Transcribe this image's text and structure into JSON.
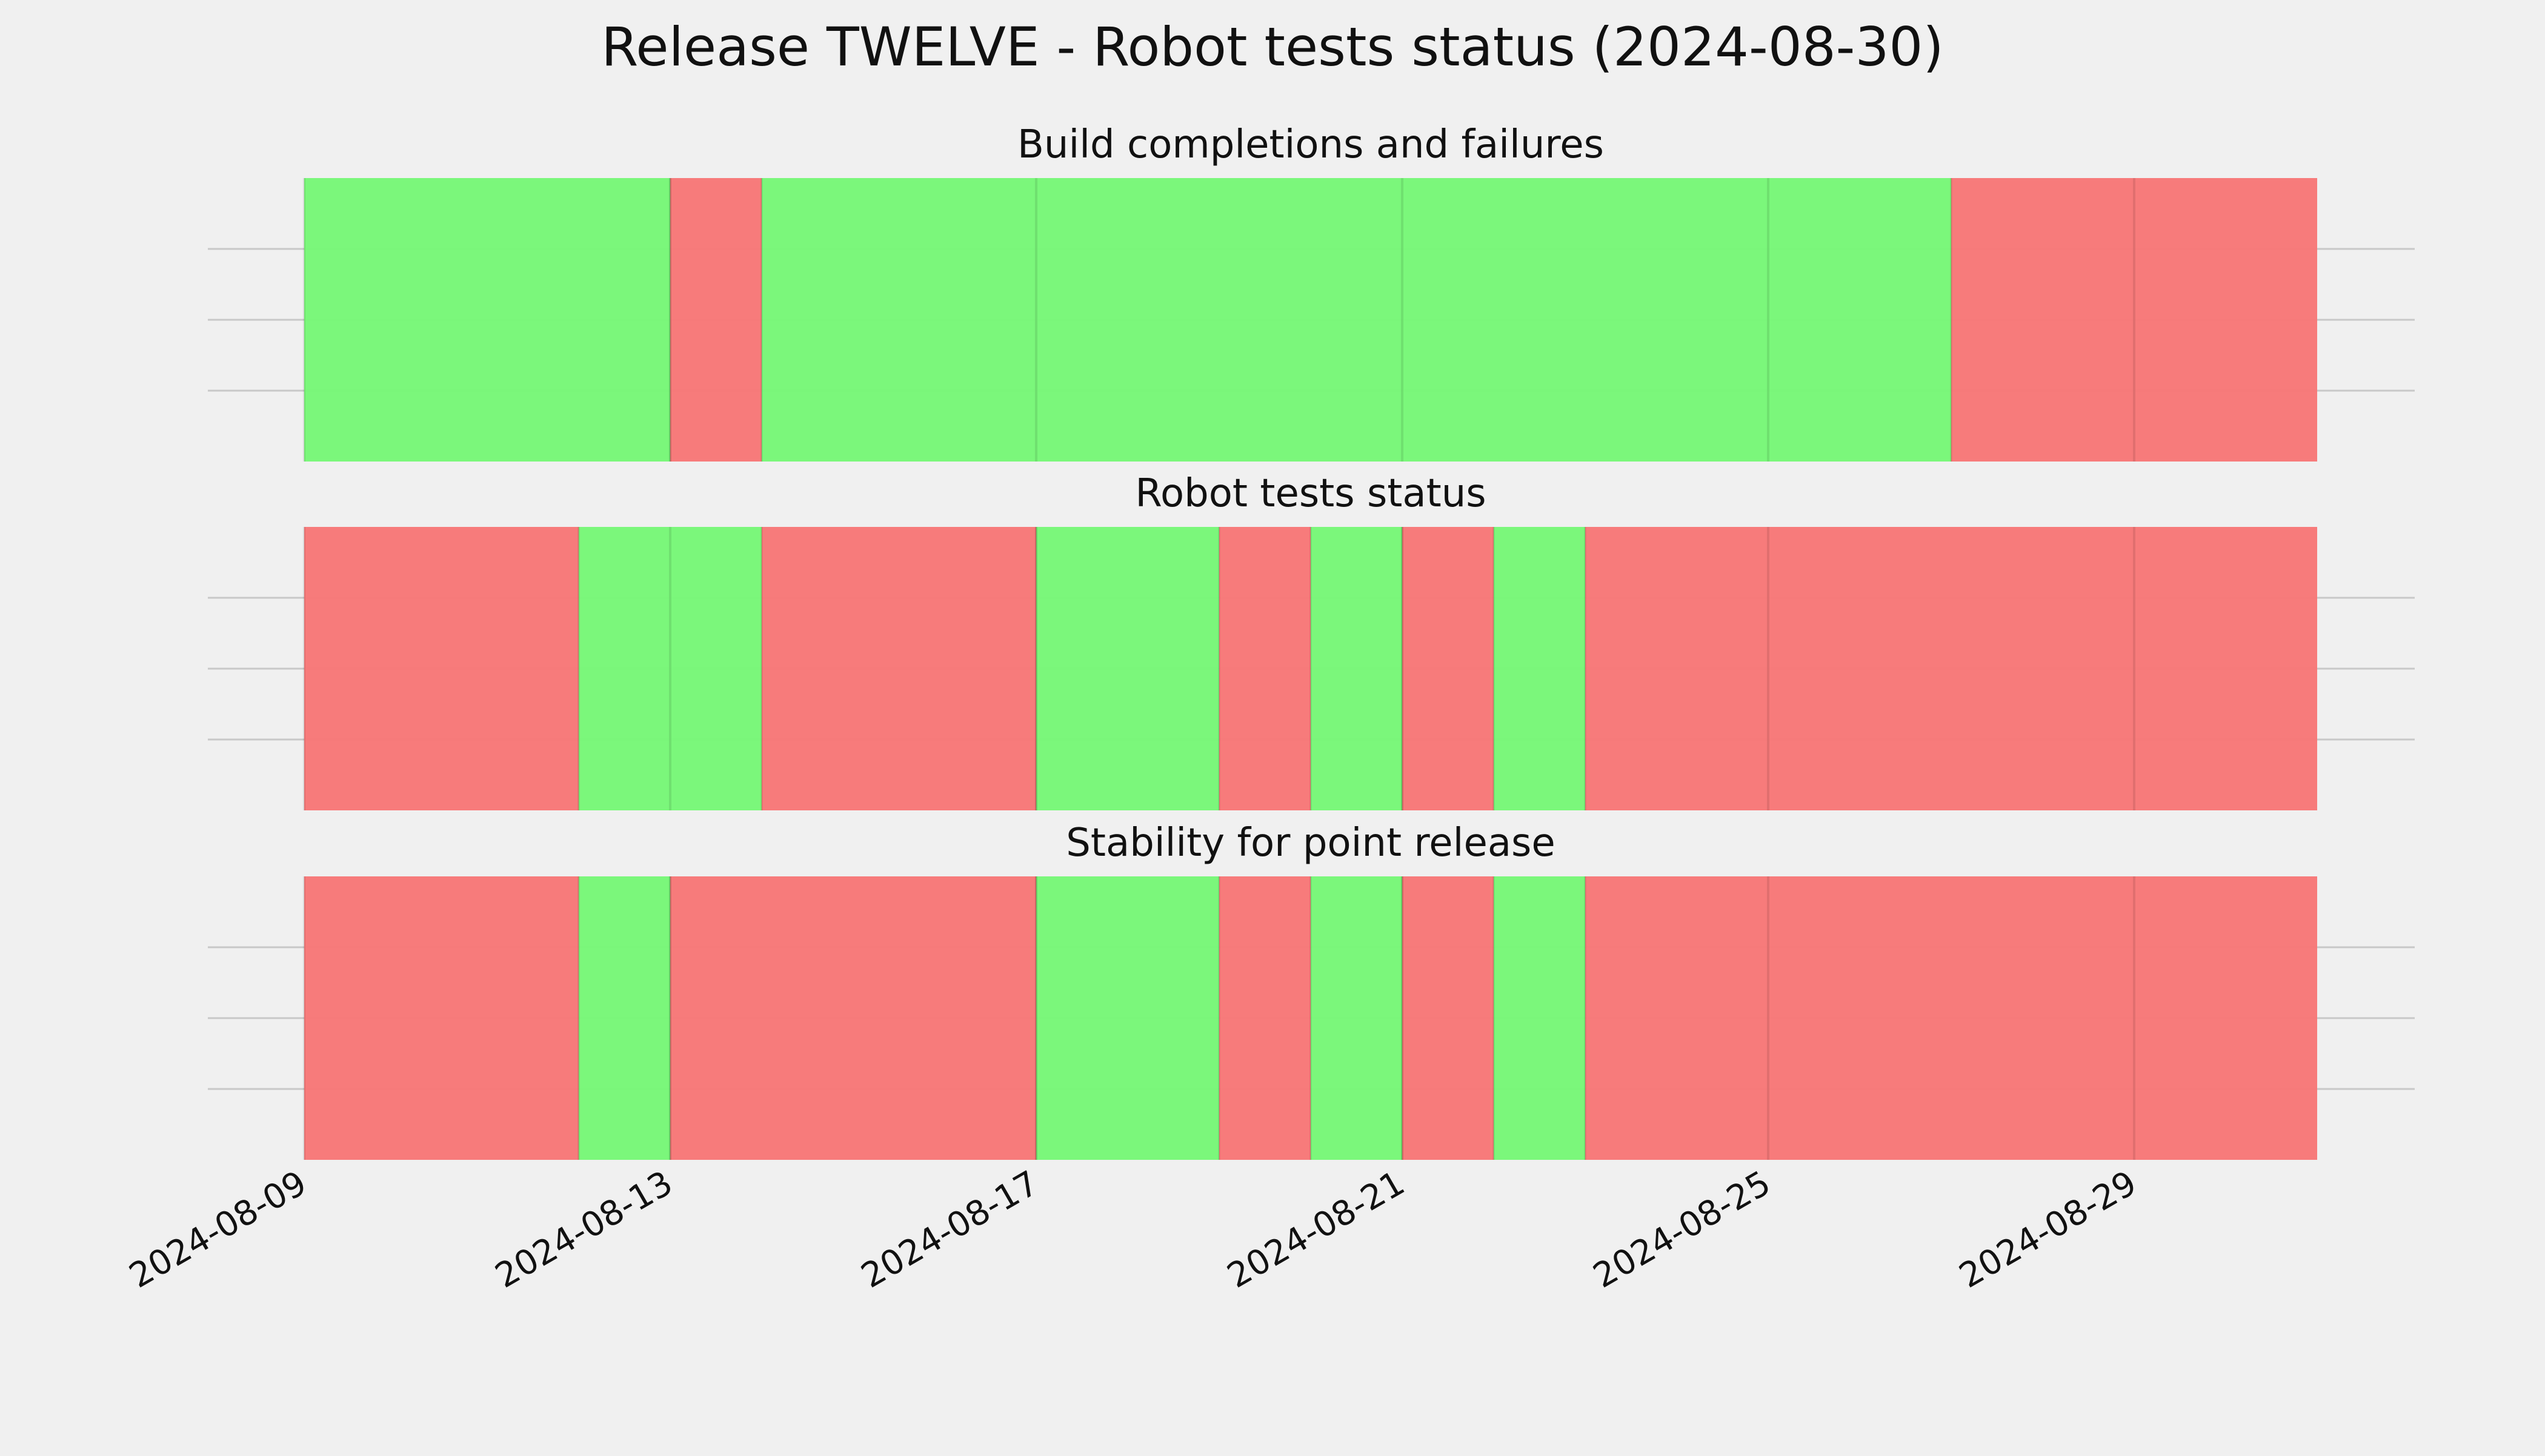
{
  "chart_data": {
    "type": "timeline",
    "title": "Release TWELVE - Robot tests status (2024-08-30)",
    "x_domain": [
      "2024-08-09",
      "2024-08-31"
    ],
    "x_ticks": [
      "2024-08-09",
      "2024-08-13",
      "2024-08-17",
      "2024-08-21",
      "2024-08-25",
      "2024-08-29"
    ],
    "grid": true,
    "colors": {
      "pass": "#77f777",
      "fail": "#f77777",
      "gridline": "#c8c8c8",
      "background": "#f0f0f0"
    },
    "panels": [
      {
        "title": "Build completions and failures",
        "segments": [
          {
            "start": "2024-08-09",
            "end": "2024-08-13",
            "status": "pass"
          },
          {
            "start": "2024-08-13",
            "end": "2024-08-14",
            "status": "fail"
          },
          {
            "start": "2024-08-14",
            "end": "2024-08-27",
            "status": "pass"
          },
          {
            "start": "2024-08-27",
            "end": "2024-08-31",
            "status": "fail"
          }
        ]
      },
      {
        "title": "Robot tests status",
        "segments": [
          {
            "start": "2024-08-09",
            "end": "2024-08-12",
            "status": "fail"
          },
          {
            "start": "2024-08-12",
            "end": "2024-08-14",
            "status": "pass"
          },
          {
            "start": "2024-08-14",
            "end": "2024-08-17",
            "status": "fail"
          },
          {
            "start": "2024-08-17",
            "end": "2024-08-19",
            "status": "pass"
          },
          {
            "start": "2024-08-19",
            "end": "2024-08-20",
            "status": "fail"
          },
          {
            "start": "2024-08-20",
            "end": "2024-08-21",
            "status": "pass"
          },
          {
            "start": "2024-08-21",
            "end": "2024-08-22",
            "status": "fail"
          },
          {
            "start": "2024-08-22",
            "end": "2024-08-23",
            "status": "pass"
          },
          {
            "start": "2024-08-23",
            "end": "2024-08-31",
            "status": "fail"
          }
        ]
      },
      {
        "title": "Stability for point release",
        "segments": [
          {
            "start": "2024-08-09",
            "end": "2024-08-12",
            "status": "fail"
          },
          {
            "start": "2024-08-12",
            "end": "2024-08-13",
            "status": "pass"
          },
          {
            "start": "2024-08-13",
            "end": "2024-08-17",
            "status": "fail"
          },
          {
            "start": "2024-08-17",
            "end": "2024-08-19",
            "status": "pass"
          },
          {
            "start": "2024-08-19",
            "end": "2024-08-20",
            "status": "fail"
          },
          {
            "start": "2024-08-20",
            "end": "2024-08-21",
            "status": "pass"
          },
          {
            "start": "2024-08-21",
            "end": "2024-08-22",
            "status": "fail"
          },
          {
            "start": "2024-08-22",
            "end": "2024-08-23",
            "status": "pass"
          },
          {
            "start": "2024-08-23",
            "end": "2024-08-31",
            "status": "fail"
          }
        ]
      }
    ]
  }
}
